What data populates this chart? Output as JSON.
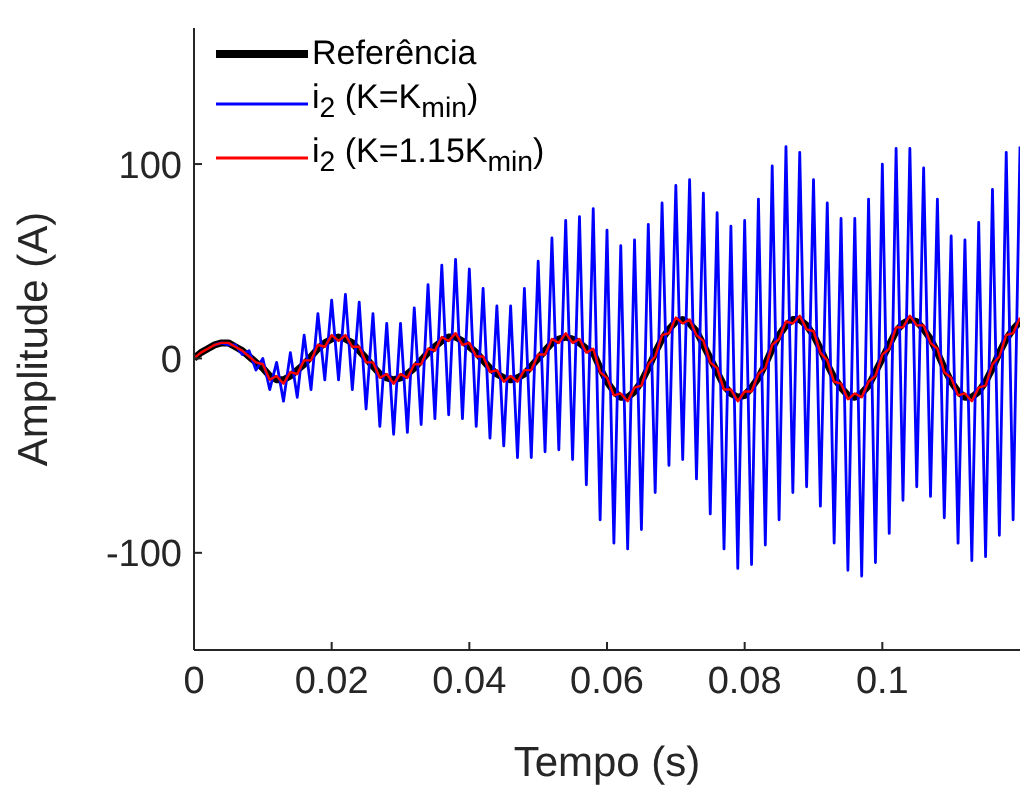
{
  "chart_data": {
    "type": "line",
    "xlabel": "Tempo (s)",
    "ylabel": "Amplitude (A)",
    "xlim": [
      0,
      0.12
    ],
    "xticks": [
      0,
      0.02,
      0.04,
      0.06,
      0.08,
      0.1
    ],
    "ylim": [
      -150,
      170
    ],
    "yticks": [
      -100,
      0,
      100
    ],
    "legend": "top left",
    "marker": "none",
    "line_style": "solid",
    "x": [
      0,
      0.001,
      0.002,
      0.003,
      0.004,
      0.005,
      0.006,
      0.007,
      0.008,
      0.009,
      0.01,
      0.011,
      0.012,
      0.013,
      0.014,
      0.015,
      0.016,
      0.017,
      0.018,
      0.019,
      0.02,
      0.021,
      0.022,
      0.023,
      0.024,
      0.025,
      0.026,
      0.027,
      0.028,
      0.029,
      0.03,
      0.031,
      0.032,
      0.033,
      0.034,
      0.035,
      0.036,
      0.037,
      0.038,
      0.039,
      0.04,
      0.041,
      0.042,
      0.043,
      0.044,
      0.045,
      0.046,
      0.047,
      0.048,
      0.049,
      0.05,
      0.051,
      0.052,
      0.053,
      0.054,
      0.055,
      0.056,
      0.057,
      0.058,
      0.059,
      0.06,
      0.061,
      0.062,
      0.063,
      0.064,
      0.065,
      0.066,
      0.067,
      0.068,
      0.069,
      0.07,
      0.071,
      0.072,
      0.073,
      0.074,
      0.075,
      0.076,
      0.077,
      0.078,
      0.079,
      0.08,
      0.081,
      0.082,
      0.083,
      0.084,
      0.085,
      0.086,
      0.087,
      0.088,
      0.089,
      0.09,
      0.091,
      0.092,
      0.093,
      0.094,
      0.095,
      0.096,
      0.097,
      0.098,
      0.099,
      0.1,
      0.101,
      0.102,
      0.103,
      0.104,
      0.105,
      0.106,
      0.107,
      0.108,
      0.109,
      0.11,
      0.111,
      0.112,
      0.113,
      0.114,
      0.115,
      0.116,
      0.117,
      0.118,
      0.119,
      0.12
    ],
    "series": [
      {
        "name": "Referência",
        "color": "#000000",
        "values": [
          0,
          3,
          5,
          7,
          8,
          8,
          6,
          4,
          1,
          -2,
          -5,
          -9,
          -11,
          -11,
          -9,
          -6,
          -3,
          1,
          5,
          8,
          10,
          11,
          10,
          8,
          4,
          0,
          -4,
          -8,
          -10,
          -11,
          -10,
          -8,
          -5,
          -1,
          3,
          6,
          9,
          11,
          11,
          9,
          6,
          3,
          -1,
          -5,
          -8,
          -10,
          -11,
          -10,
          -8,
          -4,
          0,
          4,
          8,
          10,
          11,
          10,
          8,
          5,
          3,
          -5,
          -12,
          -17,
          -20,
          -20,
          -17,
          -12,
          -5,
          3,
          10,
          15,
          19,
          20,
          18,
          14,
          7,
          0,
          -7,
          -14,
          -18,
          -20,
          -19,
          -15,
          -10,
          -3,
          5,
          12,
          17,
          20,
          20,
          17,
          12,
          5,
          -3,
          -10,
          -15,
          -19,
          -20,
          -18,
          -14,
          -7,
          0,
          7,
          14,
          18,
          20,
          19,
          15,
          10,
          3,
          -5,
          -12,
          -17,
          -20,
          -20,
          -17,
          -12,
          -5,
          3,
          10,
          15,
          19
        ]
      },
      {
        "name": "i$_{2}$ (K=K$_{min}$)",
        "color": "#0000ff",
        "values": [
          null,
          null,
          null,
          7,
          8,
          7,
          7,
          2,
          4,
          -6,
          0,
          -16,
          -2,
          -22,
          3,
          -20,
          12,
          -16,
          23,
          -11,
          30,
          -11,
          33,
          -16,
          29,
          -26,
          23,
          -35,
          18,
          -39,
          18,
          -38,
          26,
          -34,
          38,
          -31,
          48,
          -29,
          51,
          -31,
          46,
          -35,
          36,
          -41,
          27,
          -45,
          27,
          -51,
          36,
          -51,
          50,
          -48,
          62,
          -47,
          71,
          -52,
          73,
          -65,
          77,
          -83,
          66,
          -95,
          58,
          -98,
          61,
          -88,
          69,
          -69,
          80,
          -55,
          89,
          -52,
          92,
          -62,
          85,
          -80,
          75,
          -98,
          68,
          -108,
          71,
          -106,
          82,
          -96,
          99,
          -83,
          109,
          -69,
          106,
          -66,
          92,
          -76,
          80,
          -95,
          72,
          -109,
          72,
          -112,
          82,
          -105,
          100,
          -90,
          108,
          -73,
          108,
          -66,
          98,
          -71,
          82,
          -82,
          63,
          -95,
          61,
          -104,
          70,
          -102,
          87,
          -91,
          106,
          -83,
          109
        ]
      },
      {
        "name": "i$_{2}$ (K=1.15K$_{min}$)",
        "color": "#ff0000",
        "values": [
          0,
          3,
          5,
          7,
          8,
          8,
          6,
          4,
          1,
          -2,
          -3,
          -11,
          -9,
          -13,
          -7,
          -8,
          -1,
          -1,
          7,
          6,
          12,
          9,
          12,
          6,
          6,
          -2,
          -2,
          -10,
          -8,
          -13,
          -8,
          -10,
          -3,
          -3,
          5,
          4,
          11,
          9,
          13,
          7,
          8,
          1,
          1,
          -7,
          -6,
          -12,
          -9,
          -12,
          -6,
          -6,
          2,
          2,
          10,
          8,
          13,
          8,
          10,
          3,
          5,
          -7,
          -10,
          -19,
          -18,
          -22,
          -15,
          -14,
          -3,
          1,
          12,
          13,
          21,
          18,
          20,
          12,
          9,
          -2,
          -5,
          -16,
          -16,
          -22,
          -17,
          -17,
          -8,
          -5,
          7,
          10,
          19,
          18,
          22,
          15,
          14,
          3,
          -1,
          -12,
          -13,
          -21,
          -18,
          -20,
          -12,
          -9,
          2,
          5,
          16,
          16,
          22,
          17,
          17,
          8,
          5,
          -7,
          -10,
          -19,
          -18,
          -22,
          -15,
          -14,
          -3,
          1,
          12,
          13,
          21
        ]
      }
    ]
  }
}
